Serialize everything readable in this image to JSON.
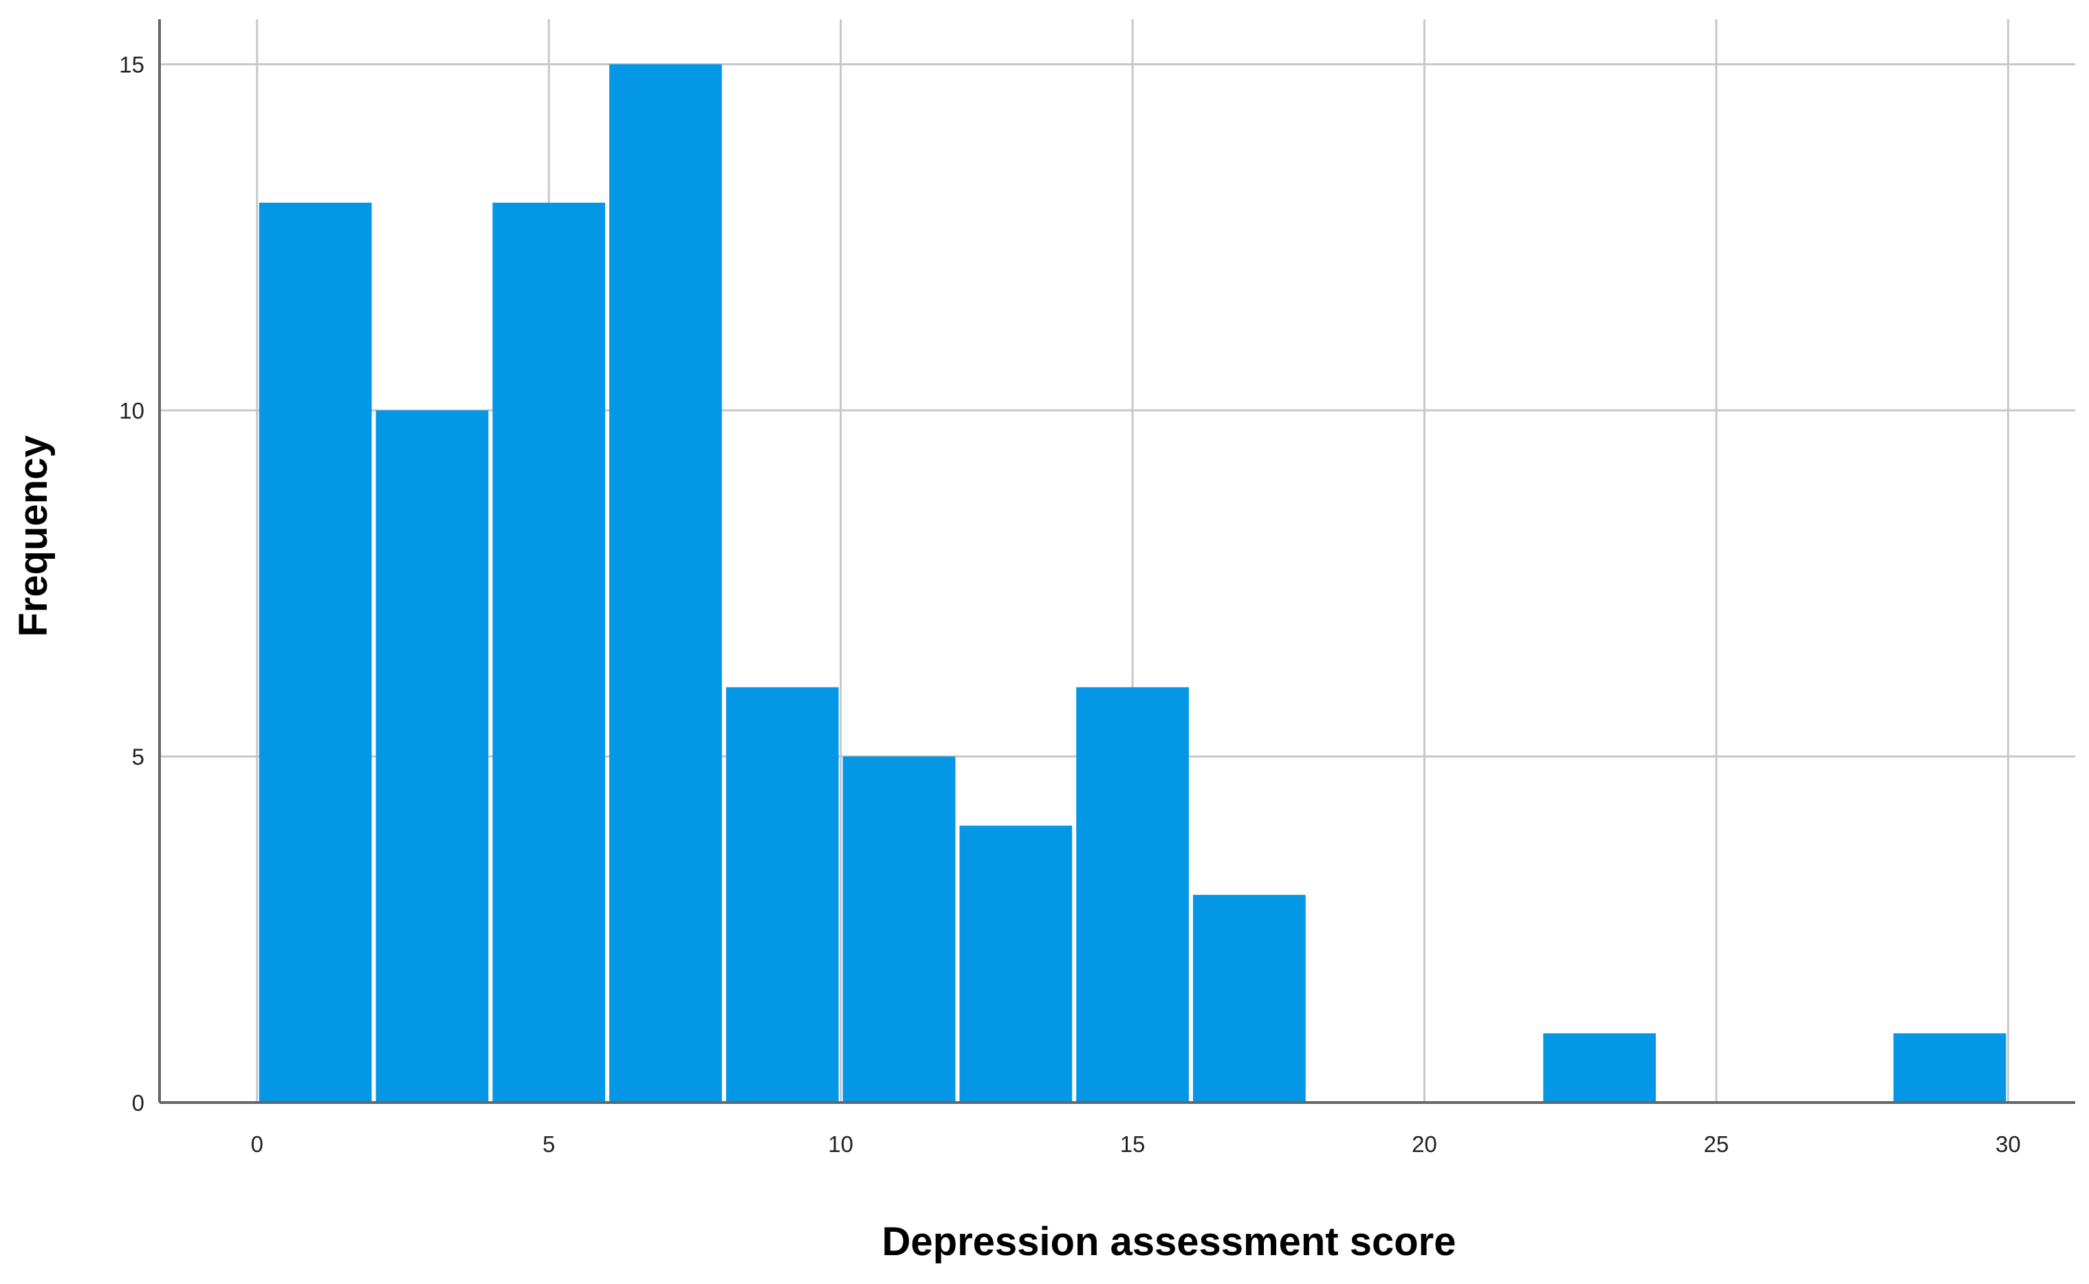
{
  "chart_data": {
    "type": "bar",
    "title": "",
    "xlabel": "Depression assessment score",
    "ylabel": "Frequency",
    "xlim": [
      -1.67,
      31.15
    ],
    "ylim": [
      0,
      15.65
    ],
    "xticks": [
      0,
      5,
      10,
      15,
      20,
      25,
      30
    ],
    "yticks": [
      0,
      5,
      10,
      15
    ],
    "grid": true,
    "bar_color": "#0497e6",
    "grid_color": "#c8c8c8",
    "bins": [
      {
        "x0": 0,
        "x1": 2,
        "count": 13
      },
      {
        "x0": 2,
        "x1": 4,
        "count": 10
      },
      {
        "x0": 4,
        "x1": 6,
        "count": 13
      },
      {
        "x0": 6,
        "x1": 8,
        "count": 15
      },
      {
        "x0": 8,
        "x1": 10,
        "count": 6
      },
      {
        "x0": 10,
        "x1": 12,
        "count": 5
      },
      {
        "x0": 12,
        "x1": 14,
        "count": 4
      },
      {
        "x0": 14,
        "x1": 16,
        "count": 6
      },
      {
        "x0": 16,
        "x1": 18,
        "count": 3
      },
      {
        "x0": 18,
        "x1": 20,
        "count": 0
      },
      {
        "x0": 20,
        "x1": 22,
        "count": 0
      },
      {
        "x0": 22,
        "x1": 24,
        "count": 1
      },
      {
        "x0": 24,
        "x1": 26,
        "count": 0
      },
      {
        "x0": 26,
        "x1": 28,
        "count": 0
      },
      {
        "x0": 28,
        "x1": 30,
        "count": 1
      }
    ]
  }
}
